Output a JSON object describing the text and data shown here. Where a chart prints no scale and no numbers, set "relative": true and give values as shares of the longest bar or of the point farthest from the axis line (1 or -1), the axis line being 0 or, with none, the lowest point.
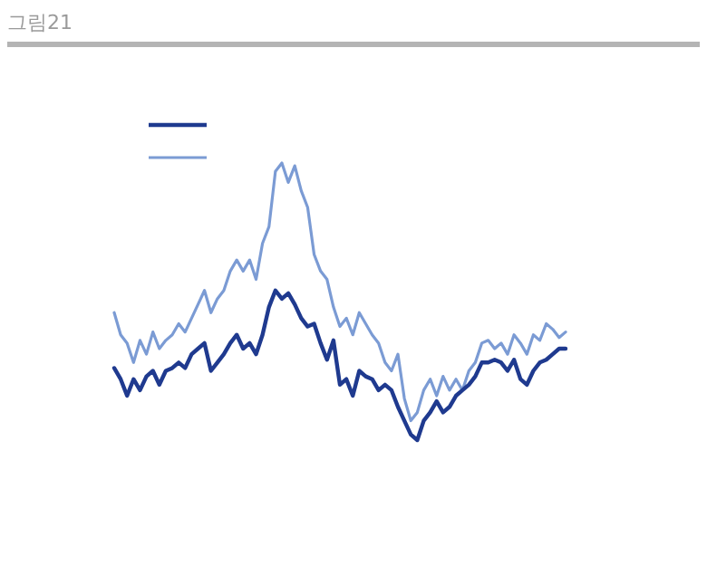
{
  "chart_data": {
    "type": "line",
    "title": "그림21",
    "relative": true,
    "grid": false,
    "categories": [
      null,
      null,
      null,
      null,
      null,
      null,
      null,
      null,
      null,
      null,
      null,
      null,
      null,
      null,
      null,
      null,
      null,
      null,
      null,
      null,
      null,
      null,
      null,
      null,
      null,
      null,
      null,
      null,
      null,
      null,
      null,
      null,
      null,
      null,
      null,
      null,
      null,
      null,
      null,
      null,
      null,
      null,
      null,
      null,
      null,
      null,
      null,
      null,
      null,
      null,
      null,
      null,
      null,
      null,
      null,
      null,
      null,
      null,
      null,
      null,
      null,
      null,
      null,
      null,
      null,
      null,
      null,
      null,
      null,
      null,
      null
    ],
    "series": [
      {
        "color": "#1f3a8f",
        "values": [
          0.26,
          0.22,
          0.16,
          0.22,
          0.18,
          0.23,
          0.25,
          0.2,
          0.25,
          0.26,
          0.28,
          0.26,
          0.31,
          0.33,
          0.35,
          0.25,
          0.28,
          0.31,
          0.35,
          0.38,
          0.33,
          0.35,
          0.31,
          0.38,
          0.48,
          0.54,
          0.51,
          0.53,
          0.49,
          0.44,
          0.41,
          0.42,
          0.35,
          0.29,
          0.36,
          0.2,
          0.22,
          0.16,
          0.25,
          0.23,
          0.22,
          0.18,
          0.2,
          0.18,
          0.12,
          0.07,
          0.02,
          0,
          0.07,
          0.1,
          0.14,
          0.1,
          0.12,
          0.16,
          0.18,
          0.2,
          0.23,
          0.28,
          0.28,
          0.29,
          0.28,
          0.25,
          0.29,
          0.22,
          0.2,
          0.25,
          0.28,
          0.29,
          0.31,
          0.33,
          0.33
        ]
      },
      {
        "color": "#7b9bd4",
        "values": [
          0.46,
          0.38,
          0.35,
          0.28,
          0.36,
          0.31,
          0.39,
          0.33,
          0.36,
          0.38,
          0.42,
          0.39,
          0.44,
          0.49,
          0.54,
          0.46,
          0.51,
          0.54,
          0.61,
          0.65,
          0.61,
          0.65,
          0.58,
          0.71,
          0.77,
          0.97,
          1,
          0.93,
          0.99,
          0.9,
          0.84,
          0.67,
          0.61,
          0.58,
          0.48,
          0.41,
          0.44,
          0.38,
          0.46,
          0.42,
          0.38,
          0.35,
          0.28,
          0.25,
          0.31,
          0.15,
          0.07,
          0.1,
          0.18,
          0.22,
          0.16,
          0.23,
          0.18,
          0.22,
          0.18,
          0.25,
          0.28,
          0.35,
          0.36,
          0.33,
          0.35,
          0.31,
          0.38,
          0.35,
          0.31,
          0.38,
          0.36,
          0.42,
          0.4,
          0.37,
          0.39
        ]
      }
    ]
  }
}
